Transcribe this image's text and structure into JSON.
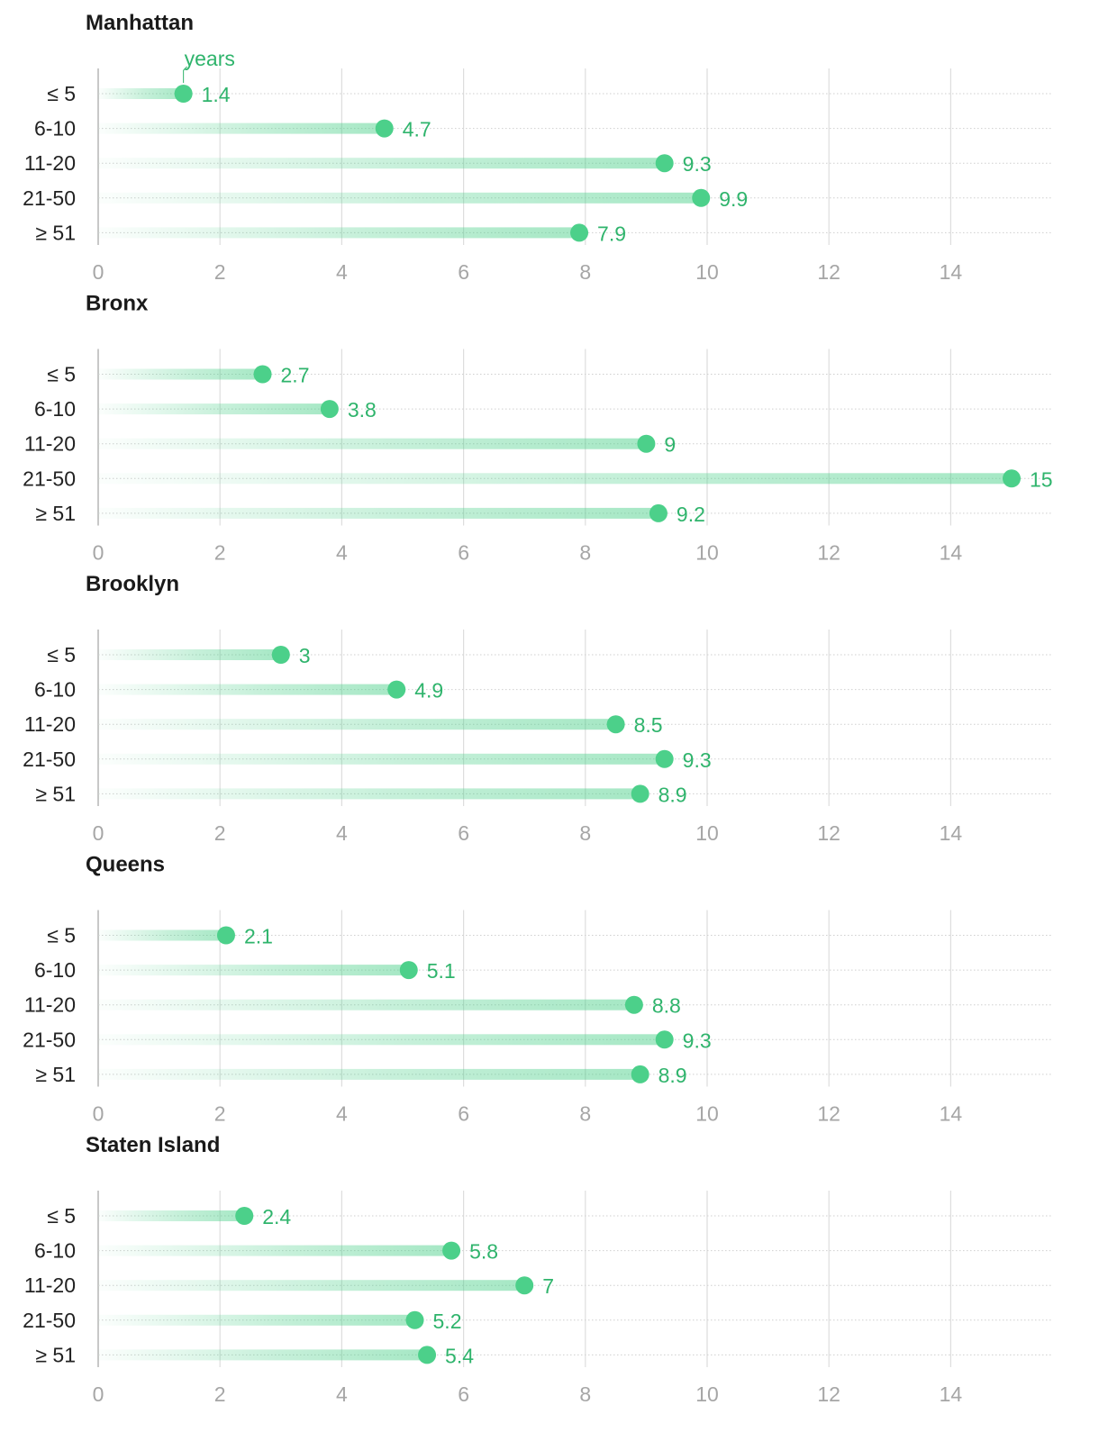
{
  "colors": {
    "accent": "#4cd08a",
    "value_text": "#2fb46c",
    "grid": "#dddddd",
    "tick_text": "#a6a6a6"
  },
  "chart_data": [
    {
      "type": "lollipop",
      "title": "Manhattan",
      "unit_label": "years",
      "categories": [
        "≤ 5",
        "6-10",
        "11-20",
        "21-50",
        "≥ 51"
      ],
      "values": [
        1.4,
        4.7,
        9.3,
        9.9,
        7.9
      ],
      "value_labels": [
        "1.4",
        "4.7",
        "9.3",
        "9.9",
        "7.9"
      ],
      "xlim": [
        0,
        15
      ],
      "xticks": [
        0,
        2,
        4,
        6,
        8,
        10,
        12,
        14
      ]
    },
    {
      "type": "lollipop",
      "title": "Bronx",
      "categories": [
        "≤ 5",
        "6-10",
        "11-20",
        "21-50",
        "≥ 51"
      ],
      "values": [
        2.7,
        3.8,
        9,
        15,
        9.2
      ],
      "value_labels": [
        "2.7",
        "3.8",
        "9",
        "15",
        "9.2"
      ],
      "xlim": [
        0,
        15
      ],
      "xticks": [
        0,
        2,
        4,
        6,
        8,
        10,
        12,
        14
      ]
    },
    {
      "type": "lollipop",
      "title": "Brooklyn",
      "categories": [
        "≤ 5",
        "6-10",
        "11-20",
        "21-50",
        "≥ 51"
      ],
      "values": [
        3,
        4.9,
        8.5,
        9.3,
        8.9
      ],
      "value_labels": [
        "3",
        "4.9",
        "8.5",
        "9.3",
        "8.9"
      ],
      "xlim": [
        0,
        15
      ],
      "xticks": [
        0,
        2,
        4,
        6,
        8,
        10,
        12,
        14
      ]
    },
    {
      "type": "lollipop",
      "title": "Queens",
      "categories": [
        "≤ 5",
        "6-10",
        "11-20",
        "21-50",
        "≥ 51"
      ],
      "values": [
        2.1,
        5.1,
        8.8,
        9.3,
        8.9
      ],
      "value_labels": [
        "2.1",
        "5.1",
        "8.8",
        "9.3",
        "8.9"
      ],
      "xlim": [
        0,
        15
      ],
      "xticks": [
        0,
        2,
        4,
        6,
        8,
        10,
        12,
        14
      ]
    },
    {
      "type": "lollipop",
      "title": "Staten Island",
      "categories": [
        "≤ 5",
        "6-10",
        "11-20",
        "21-50",
        "≥ 51"
      ],
      "values": [
        2.4,
        5.8,
        7,
        5.2,
        5.4
      ],
      "value_labels": [
        "2.4",
        "5.8",
        "7",
        "5.2",
        "5.4"
      ],
      "xlim": [
        0,
        15
      ],
      "xticks": [
        0,
        2,
        4,
        6,
        8,
        10,
        12,
        14
      ]
    }
  ]
}
